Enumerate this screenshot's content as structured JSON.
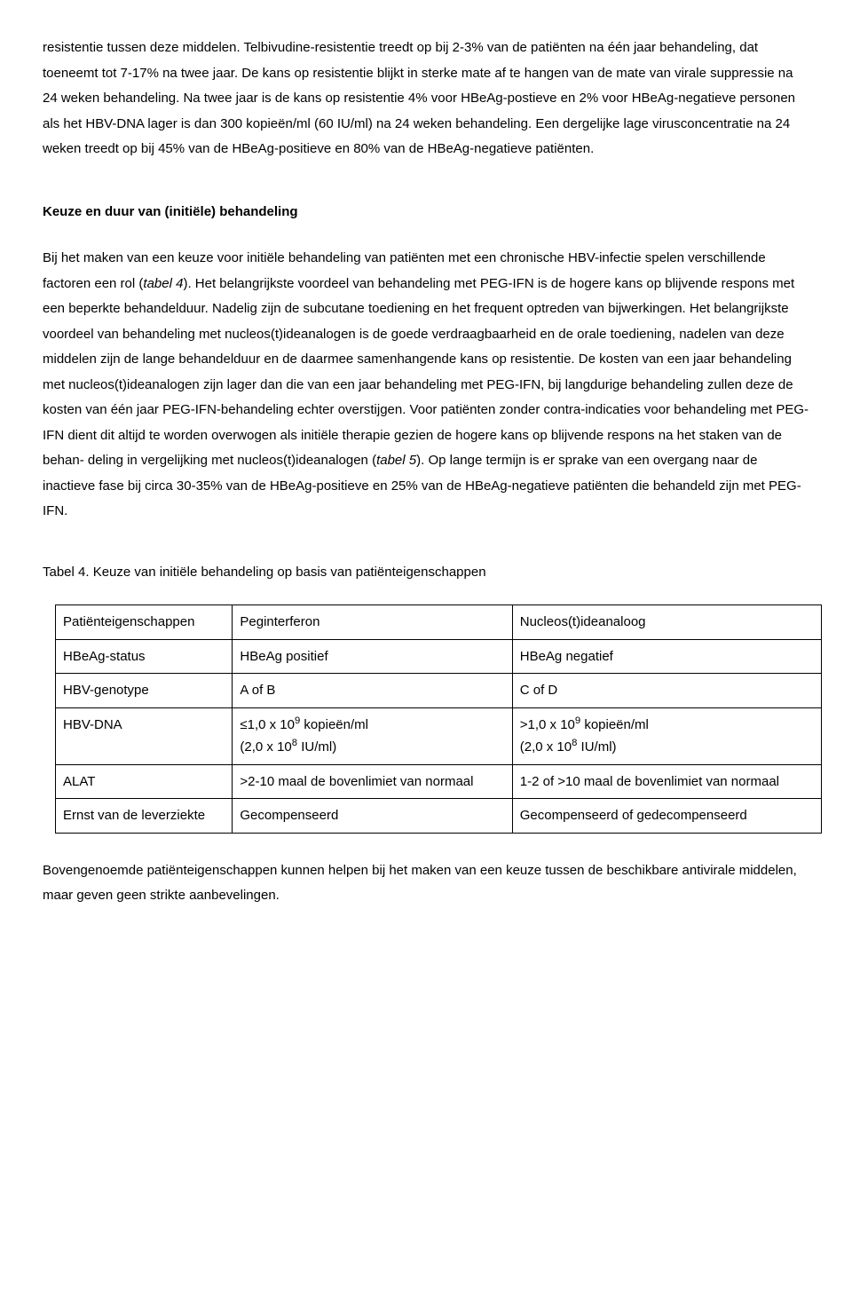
{
  "para1_parts": [
    "resistentie tussen deze middelen. Telbivudine-resistentie treedt op bij 2-3% van de patiënten na één jaar behandeling, dat toeneemt tot 7-17% na twee jaar. De kans op resistentie blijkt in sterke mate af te hangen van de mate van virale suppressie na 24 weken behandeling. Na twee jaar is de kans op resistentie 4% voor HBeAg-postieve en 2% voor HBeAg-negatieve personen als het HBV-DNA lager is dan 300 kopieën/ml (60 IU/ml) na 24 weken behandeling. Een dergelijke lage virusconcentratie na 24 weken treedt op bij 45% van de HBeAg-positieve en 80% van de HBeAg-negatieve patiënten."
  ],
  "heading1": "Keuze en duur van (initiële) behandeling",
  "para2_pre": "Bij het maken van een keuze voor initiële behandeling van patiënten met een chronische HBV-infectie spelen verschillende factoren een rol (",
  "para2_t4": "tabel 4",
  "para2_mid": "). Het belangrijkste voordeel van behandeling met PEG-IFN is de hogere kans op blijvende respons met een beperkte behandelduur. Nadelig zijn de subcutane toediening en het frequent optreden van bijwerkingen. Het belangrijkste voordeel van behandeling met nucleos(t)ideanalogen is de goede verdraagbaarheid en de orale toediening, nadelen van deze middelen zijn de lange behandelduur en de daarmee samenhangende kans op resistentie. De kosten van een jaar behandeling met nucleos(t)ideanalogen zijn lager dan die van een jaar behandeling met PEG-IFN, bij langdurige behandeling zullen deze de kosten van één jaar PEG-IFN-behandeling echter overstijgen. Voor patiënten zonder contra-indicaties voor behandeling met PEG-IFN dient dit altijd te worden overwogen als initiële therapie gezien de hogere kans op blijvende respons na het staken van de behan- deling in vergelijking met nucleos(t)ideanalogen (",
  "para2_t5": "tabel 5",
  "para2_post": "). Op lange termijn is er sprake van een overgang naar de inactieve fase bij circa 30-35% van de HBeAg-positieve en 25% van de HBeAg-negatieve patiënten die behandeld zijn met PEG-IFN.",
  "table_title": "Tabel 4. Keuze van initiële behandeling op basis van patiënteigenschappen",
  "table": {
    "rows": [
      {
        "c0": "Patiënteigenschappen",
        "c1": "Peginterferon",
        "c2": "Nucleos(t)ideanaloog"
      },
      {
        "c0": "HBeAg-status",
        "c1": "HBeAg positief",
        "c2": "HBeAg negatief"
      },
      {
        "c0": "HBV-genotype",
        "c1": "A of B",
        "c2": "C of D"
      }
    ],
    "hbvdna": {
      "c0": "HBV-DNA",
      "c1a": "≤1,0 x 10",
      "c1sup": "9",
      "c1b": " kopieën/ml",
      "c1c": "(2,0 x 10",
      "c1sup2": "8",
      "c1d": " IU/ml)",
      "c2a": ">1,0 x 10",
      "c2sup": "9",
      "c2b": " kopieën/ml",
      "c2c": "(2,0 x 10",
      "c2sup2": "8",
      "c2d": " IU/ml)"
    },
    "alat": {
      "c0": "ALAT",
      "c1": ">2-10 maal de bovenlimiet van normaal",
      "c2": "1-2 of >10 maal de bovenlimiet van normaal"
    },
    "ernst": {
      "c0": "Ernst van de leverziekte",
      "c1": "Gecompenseerd",
      "c2": "Gecompenseerd of gedecompenseerd"
    }
  },
  "para3": "Bovengenoemde patiënteigenschappen kunnen helpen bij het maken van een keuze tussen de beschikbare antivirale middelen, maar geven geen strikte aanbevelingen."
}
